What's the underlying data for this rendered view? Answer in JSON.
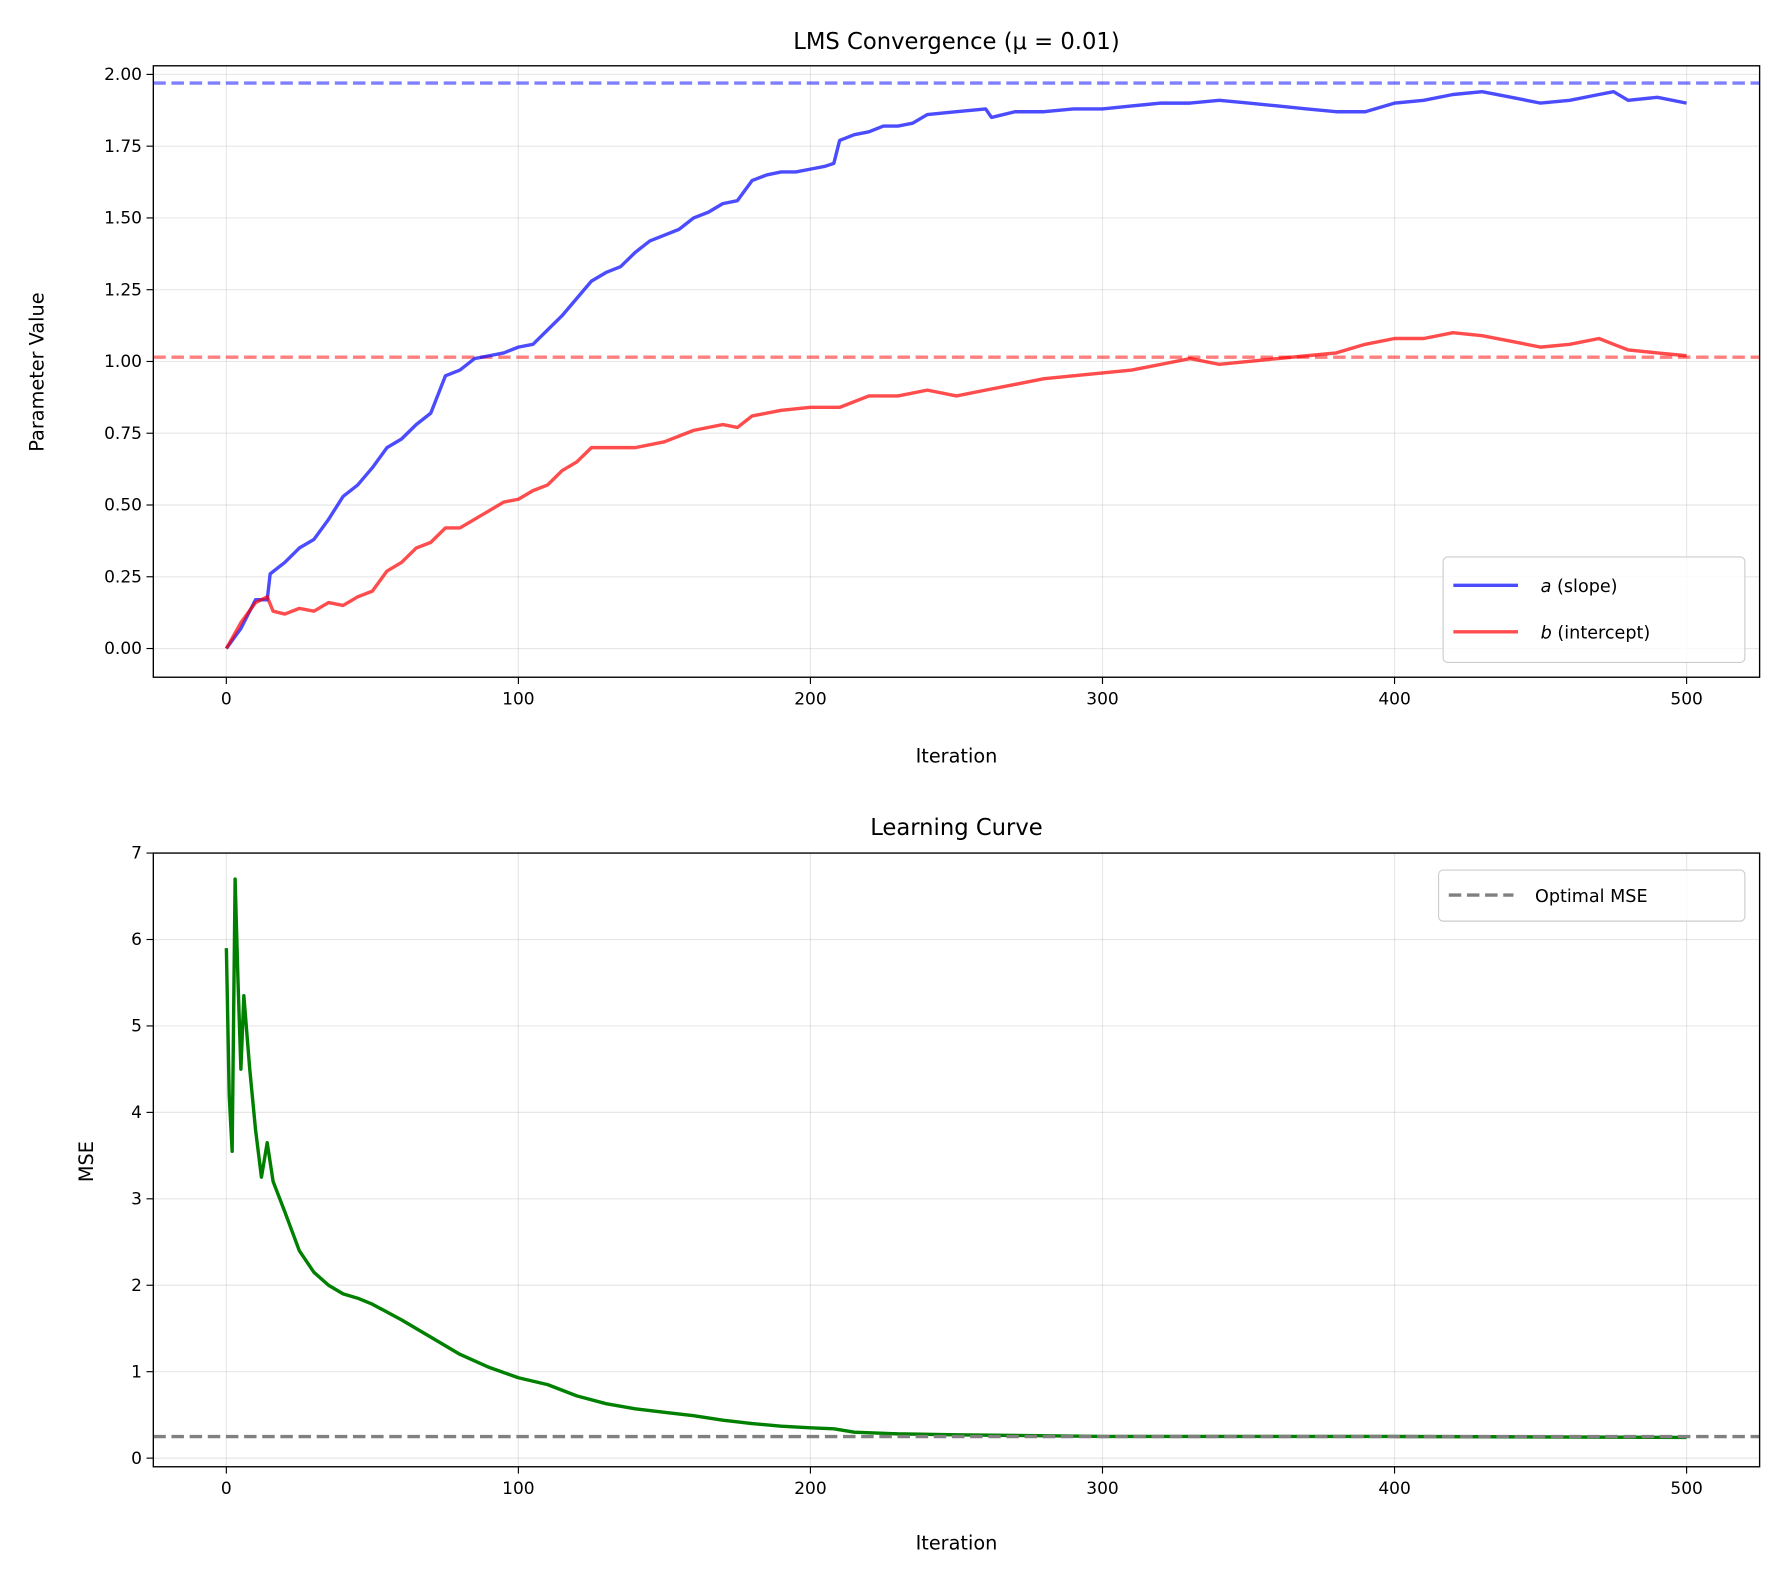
{
  "chart_data": [
    {
      "type": "line",
      "title": "LMS Convergence (μ = 0.01)",
      "xlabel": "Iteration",
      "ylabel": "Parameter Value",
      "xlim": [
        -25,
        525
      ],
      "ylim": [
        -0.1,
        2.03
      ],
      "xticks": [
        0,
        100,
        200,
        300,
        400,
        500
      ],
      "yticks": [
        0.0,
        0.25,
        0.5,
        0.75,
        1.0,
        1.25,
        1.5,
        1.75,
        2.0
      ],
      "ytick_labels": [
        "0.00",
        "0.25",
        "0.50",
        "0.75",
        "1.00",
        "1.25",
        "1.50",
        "1.75",
        "2.00"
      ],
      "grid": true,
      "legend_position": "lower-right",
      "series": [
        {
          "name": "a (slope)",
          "legend_var": "a",
          "legend_rest": " (slope)",
          "color": "#0000ff",
          "alpha": 0.7,
          "x": [
            0,
            5,
            10,
            14,
            15,
            20,
            25,
            30,
            35,
            40,
            45,
            50,
            55,
            60,
            65,
            70,
            75,
            80,
            85,
            90,
            95,
            100,
            105,
            110,
            115,
            120,
            125,
            130,
            135,
            140,
            145,
            150,
            155,
            160,
            165,
            170,
            175,
            180,
            185,
            190,
            195,
            200,
            205,
            208,
            210,
            215,
            220,
            225,
            230,
            235,
            240,
            250,
            260,
            262,
            270,
            280,
            290,
            300,
            310,
            320,
            330,
            340,
            350,
            360,
            370,
            380,
            390,
            400,
            410,
            420,
            430,
            440,
            450,
            460,
            470,
            475,
            480,
            490,
            500
          ],
          "y": [
            0,
            0.07,
            0.17,
            0.17,
            0.26,
            0.3,
            0.35,
            0.38,
            0.45,
            0.53,
            0.57,
            0.63,
            0.7,
            0.73,
            0.78,
            0.82,
            0.95,
            0.97,
            1.01,
            1.02,
            1.03,
            1.05,
            1.06,
            1.11,
            1.16,
            1.22,
            1.28,
            1.31,
            1.33,
            1.38,
            1.42,
            1.44,
            1.46,
            1.5,
            1.52,
            1.55,
            1.56,
            1.63,
            1.65,
            1.66,
            1.66,
            1.67,
            1.68,
            1.69,
            1.77,
            1.79,
            1.8,
            1.82,
            1.82,
            1.83,
            1.86,
            1.87,
            1.88,
            1.85,
            1.87,
            1.87,
            1.88,
            1.88,
            1.89,
            1.9,
            1.9,
            1.91,
            1.9,
            1.89,
            1.88,
            1.87,
            1.87,
            1.9,
            1.91,
            1.93,
            1.94,
            1.92,
            1.9,
            1.91,
            1.93,
            1.94,
            1.91,
            1.92,
            1.9
          ]
        },
        {
          "name": "b (intercept)",
          "legend_var": "b",
          "legend_rest": " (intercept)",
          "color": "#ff0000",
          "alpha": 0.7,
          "x": [
            0,
            5,
            10,
            14,
            16,
            20,
            25,
            30,
            35,
            40,
            45,
            50,
            55,
            60,
            65,
            70,
            75,
            80,
            85,
            90,
            95,
            100,
            105,
            110,
            115,
            120,
            125,
            130,
            140,
            150,
            160,
            170,
            175,
            180,
            190,
            200,
            210,
            220,
            230,
            240,
            250,
            260,
            270,
            280,
            290,
            300,
            310,
            320,
            330,
            340,
            350,
            360,
            370,
            380,
            390,
            400,
            410,
            420,
            430,
            440,
            450,
            460,
            470,
            475,
            480,
            490,
            500
          ],
          "y": [
            0,
            0.09,
            0.16,
            0.18,
            0.13,
            0.12,
            0.14,
            0.13,
            0.16,
            0.15,
            0.18,
            0.2,
            0.27,
            0.3,
            0.35,
            0.37,
            0.42,
            0.42,
            0.45,
            0.48,
            0.51,
            0.52,
            0.55,
            0.57,
            0.62,
            0.65,
            0.7,
            0.7,
            0.7,
            0.72,
            0.76,
            0.78,
            0.77,
            0.81,
            0.83,
            0.84,
            0.84,
            0.88,
            0.88,
            0.9,
            0.88,
            0.9,
            0.92,
            0.94,
            0.95,
            0.96,
            0.97,
            0.99,
            1.01,
            0.99,
            1.0,
            1.01,
            1.02,
            1.03,
            1.06,
            1.08,
            1.08,
            1.1,
            1.09,
            1.07,
            1.05,
            1.06,
            1.08,
            1.06,
            1.04,
            1.03,
            1.02
          ]
        }
      ],
      "reference_lines": [
        {
          "y": 1.97,
          "color": "#0000ff",
          "alpha": 0.5,
          "style": "dashed"
        },
        {
          "y": 1.015,
          "color": "#ff0000",
          "alpha": 0.5,
          "style": "dashed"
        }
      ]
    },
    {
      "type": "line",
      "title": "Learning Curve",
      "xlabel": "Iteration",
      "ylabel": "MSE",
      "xlim": [
        -25,
        525
      ],
      "ylim": [
        -0.1,
        7.0
      ],
      "xticks": [
        0,
        100,
        200,
        300,
        400,
        500
      ],
      "yticks": [
        0,
        1,
        2,
        3,
        4,
        5,
        6,
        7
      ],
      "ytick_labels": [
        "0",
        "1",
        "2",
        "3",
        "4",
        "5",
        "6",
        "7"
      ],
      "grid": true,
      "legend_position": "upper-right",
      "series": [
        {
          "name": "MSE",
          "color": "#008000",
          "alpha": 1,
          "x": [
            0,
            1,
            2,
            3,
            4,
            5,
            6,
            8,
            10,
            12,
            14,
            16,
            20,
            25,
            30,
            35,
            40,
            45,
            50,
            60,
            70,
            80,
            90,
            100,
            110,
            120,
            130,
            140,
            150,
            160,
            170,
            180,
            190,
            200,
            208,
            215,
            230,
            250,
            300,
            350,
            400,
            500
          ],
          "y": [
            5.9,
            4.2,
            3.55,
            6.7,
            5.5,
            4.5,
            5.35,
            4.5,
            3.8,
            3.25,
            3.65,
            3.2,
            2.85,
            2.4,
            2.15,
            2.0,
            1.9,
            1.85,
            1.78,
            1.6,
            1.4,
            1.2,
            1.05,
            0.93,
            0.85,
            0.72,
            0.63,
            0.57,
            0.53,
            0.49,
            0.44,
            0.4,
            0.37,
            0.35,
            0.34,
            0.3,
            0.28,
            0.27,
            0.25,
            0.25,
            0.25,
            0.24
          ]
        }
      ],
      "reference_lines": [
        {
          "y": 0.25,
          "color": "#808080",
          "alpha": 1,
          "style": "dashed",
          "name": "Optimal MSE"
        }
      ]
    }
  ]
}
